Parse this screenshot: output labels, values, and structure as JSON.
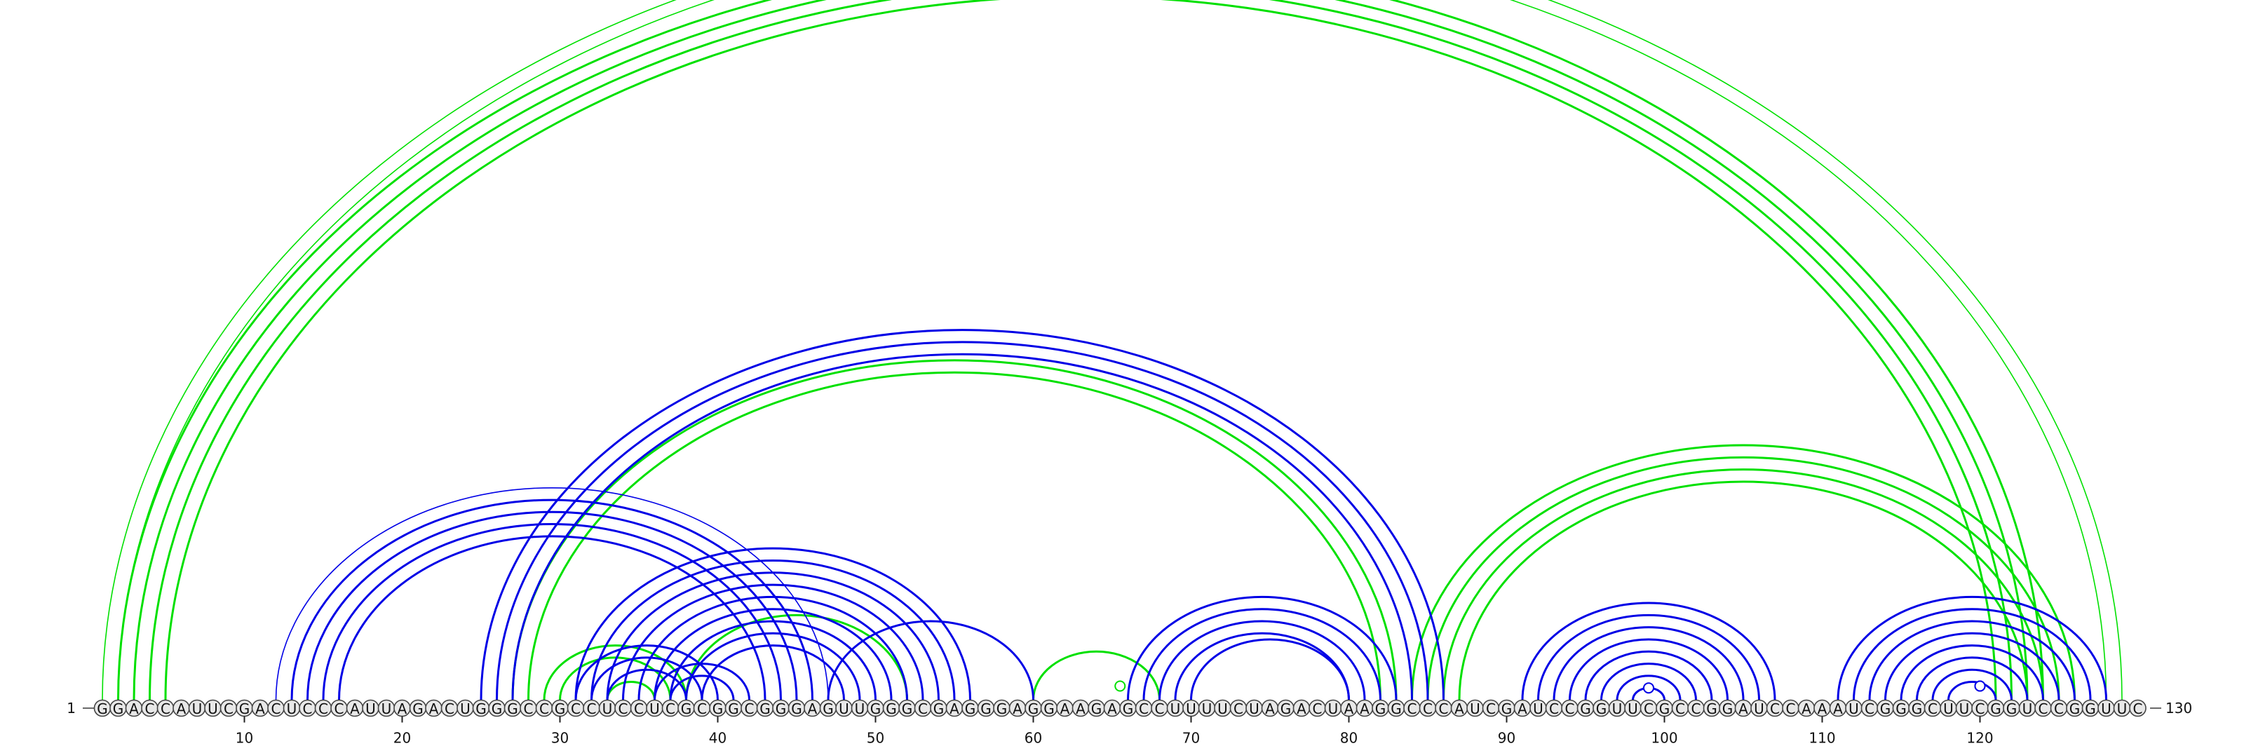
{
  "chart_data": {
    "type": "arc-diagram",
    "title": "",
    "sequence": "GGACCAUUCGACUCCCAUUAGACUGGGCCGCCUCCUCGCGGCGGGAGUUGGGCGAGGGAGGAAGAGCCUUUUCUAGACUAAGGCCCAUCGAUCCGGUUCGCCGGAUCCAAAUCGGGCUUCGGUCCGGUUC",
    "start_label": "1",
    "end_label": "130",
    "ticks": [
      10,
      20,
      30,
      40,
      50,
      60,
      70,
      80,
      90,
      100,
      110,
      120
    ],
    "colors": {
      "green": "#00e000",
      "blue": "#0000e6"
    },
    "series": [
      {
        "name": "green",
        "color": "#00e000",
        "arcs": [
          {
            "i": 1,
            "j": 129,
            "w": 1.6
          },
          {
            "i": 2,
            "j": 128,
            "w": 1.6
          },
          {
            "i": 2,
            "j": 124,
            "w": 3
          },
          {
            "i": 3,
            "j": 123,
            "w": 3
          },
          {
            "i": 4,
            "j": 122,
            "w": 3
          },
          {
            "i": 5,
            "j": 121,
            "w": 3
          },
          {
            "i": 27,
            "j": 83,
            "w": 3
          },
          {
            "i": 28,
            "j": 82,
            "w": 3
          },
          {
            "i": 84,
            "j": 126,
            "w": 3
          },
          {
            "i": 85,
            "j": 125,
            "w": 3
          },
          {
            "i": 86,
            "j": 124,
            "w": 3
          },
          {
            "i": 87,
            "j": 123,
            "w": 3
          },
          {
            "i": 60,
            "j": 68,
            "w": 3
          },
          {
            "i": 38,
            "j": 52,
            "w": 3
          },
          {
            "i": 29,
            "j": 38,
            "w": 3
          },
          {
            "i": 30,
            "j": 37,
            "w": 3
          },
          {
            "i": 33,
            "j": 36,
            "w": 3
          }
        ],
        "markers": [
          {
            "at": 65.5,
            "height": 1.0
          }
        ]
      },
      {
        "name": "blue",
        "color": "#0000e6",
        "arcs": [
          {
            "i": 12,
            "j": 47,
            "w": 1.6
          },
          {
            "i": 13,
            "j": 46,
            "w": 3
          },
          {
            "i": 14,
            "j": 45,
            "w": 3
          },
          {
            "i": 15,
            "j": 44,
            "w": 3
          },
          {
            "i": 16,
            "j": 43,
            "w": 3
          },
          {
            "i": 25,
            "j": 86,
            "w": 3
          },
          {
            "i": 26,
            "j": 85,
            "w": 3
          },
          {
            "i": 27,
            "j": 84,
            "w": 3
          },
          {
            "i": 31,
            "j": 56,
            "w": 3
          },
          {
            "i": 32,
            "j": 55,
            "w": 3
          },
          {
            "i": 33,
            "j": 54,
            "w": 3
          },
          {
            "i": 34,
            "j": 53,
            "w": 3
          },
          {
            "i": 35,
            "j": 52,
            "w": 3
          },
          {
            "i": 36,
            "j": 51,
            "w": 3
          },
          {
            "i": 37,
            "j": 50,
            "w": 3
          },
          {
            "i": 38,
            "j": 49,
            "w": 3
          },
          {
            "i": 39,
            "j": 48,
            "w": 3
          },
          {
            "i": 31,
            "j": 40,
            "w": 3
          },
          {
            "i": 32,
            "j": 39,
            "w": 3
          },
          {
            "i": 33,
            "j": 38,
            "w": 3
          },
          {
            "i": 36,
            "j": 42,
            "w": 3
          },
          {
            "i": 37,
            "j": 41,
            "w": 3
          },
          {
            "i": 47,
            "j": 60,
            "w": 3
          },
          {
            "i": 66,
            "j": 83,
            "w": 3
          },
          {
            "i": 67,
            "j": 82,
            "w": 3
          },
          {
            "i": 68,
            "j": 81,
            "w": 3
          },
          {
            "i": 69,
            "j": 80,
            "w": 3
          },
          {
            "i": 70,
            "j": 80,
            "w": 3
          },
          {
            "i": 91,
            "j": 107,
            "w": 3
          },
          {
            "i": 92,
            "j": 106,
            "w": 3
          },
          {
            "i": 93,
            "j": 105,
            "w": 3
          },
          {
            "i": 94,
            "j": 104,
            "w": 3
          },
          {
            "i": 95,
            "j": 103,
            "w": 3
          },
          {
            "i": 96,
            "j": 102,
            "w": 3
          },
          {
            "i": 97,
            "j": 101,
            "w": 3
          },
          {
            "i": 98,
            "j": 100,
            "w": 3
          },
          {
            "i": 111,
            "j": 128,
            "w": 3
          },
          {
            "i": 112,
            "j": 127,
            "w": 3
          },
          {
            "i": 113,
            "j": 126,
            "w": 3
          },
          {
            "i": 114,
            "j": 125,
            "w": 3
          },
          {
            "i": 115,
            "j": 124,
            "w": 3
          },
          {
            "i": 116,
            "j": 123,
            "w": 3
          },
          {
            "i": 117,
            "j": 122,
            "w": 3
          },
          {
            "i": 118,
            "j": 121,
            "w": 3
          }
        ],
        "markers": [
          {
            "at": 99,
            "height": 0.5
          },
          {
            "at": 120,
            "height": 5
          },
          {
            "at": 120,
            "height": 3
          },
          {
            "at": 120,
            "height": 1.5
          }
        ]
      }
    ]
  }
}
